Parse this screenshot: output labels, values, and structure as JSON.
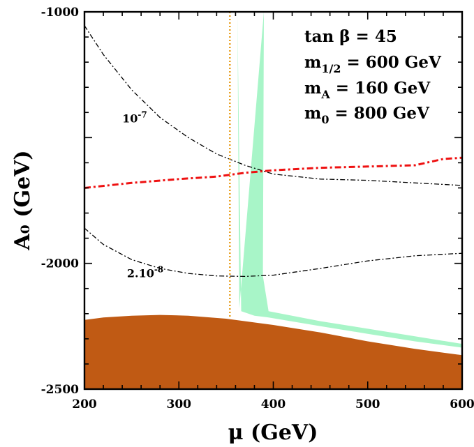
{
  "chart_data": {
    "type": "line",
    "title": "",
    "xlabel": "μ (GeV)",
    "ylabel": "A₀ (GeV)",
    "xlim": [
      200,
      600
    ],
    "ylim": [
      -2500,
      -1000
    ],
    "x_ticks": [
      200,
      300,
      400,
      500,
      600
    ],
    "y_ticks": [
      -2500,
      -2000,
      -1000
    ],
    "grid": false,
    "annotation": {
      "lines": [
        {
          "text": "tan β = 45"
        },
        {
          "text": "m",
          "sub": "1/2",
          "rest": " = 600 GeV"
        },
        {
          "text": "m",
          "sub": "A",
          "rest": " = 160 GeV"
        },
        {
          "text": "m",
          "sub": "0",
          "rest": " = 800 GeV"
        }
      ]
    },
    "contour_labels": [
      {
        "base": "10",
        "sup": "-7",
        "x": 240,
        "y": -1440
      },
      {
        "base": "2.10",
        "sup": "-8",
        "x": 245,
        "y": -2055
      }
    ],
    "series": [
      {
        "name": "excluded-region",
        "style": "filled",
        "color": "#C05A14",
        "x": [
          200,
          220,
          250,
          280,
          310,
          350,
          400,
          450,
          500,
          550,
          600
        ],
        "y": [
          -2225,
          -2215,
          -2208,
          -2205,
          -2208,
          -2220,
          -2245,
          -2275,
          -2310,
          -2340,
          -2365
        ]
      },
      {
        "name": "cosmological-band",
        "style": "filled",
        "color": "#A8F5C8",
        "x": [
          362,
          364,
          390,
          389,
          395,
          450,
          500,
          550,
          600,
          600,
          550,
          500,
          450,
          395,
          380,
          366
        ],
        "y": [
          -1000,
          -2180,
          -1000,
          -2050,
          -2190,
          -2230,
          -2260,
          -2290,
          -2320,
          -2335,
          -2310,
          -2280,
          -2250,
          -2215,
          -2208,
          -2190
        ]
      },
      {
        "name": "10^-7 contour",
        "style": "dashdot",
        "color": "#000000",
        "x": [
          200,
          220,
          250,
          280,
          310,
          340,
          370,
          400,
          450,
          500,
          550,
          600
        ],
        "y": [
          -1055,
          -1170,
          -1310,
          -1420,
          -1500,
          -1565,
          -1610,
          -1645,
          -1665,
          -1670,
          -1680,
          -1690
        ]
      },
      {
        "name": "2.10^-8 contour",
        "style": "dashdot",
        "color": "#000000",
        "x": [
          200,
          220,
          250,
          280,
          310,
          340,
          370,
          400,
          450,
          500,
          550,
          600
        ],
        "y": [
          -1860,
          -1925,
          -1985,
          -2020,
          -2040,
          -2050,
          -2052,
          -2047,
          -2020,
          -1990,
          -1970,
          -1960
        ]
      },
      {
        "name": "red dash-dot boundary",
        "style": "dashdot-thick",
        "color": "#EE1111",
        "x": [
          200,
          250,
          300,
          340,
          370,
          400,
          450,
          500,
          550,
          580,
          600
        ],
        "y": [
          -1700,
          -1680,
          -1665,
          -1655,
          -1640,
          -1630,
          -1620,
          -1615,
          -1610,
          -1585,
          -1580
        ]
      },
      {
        "name": "vertical dotted line",
        "style": "dotted",
        "color": "#E8A020",
        "x": [
          354,
          354
        ],
        "y": [
          -1000,
          -2220
        ]
      }
    ]
  }
}
